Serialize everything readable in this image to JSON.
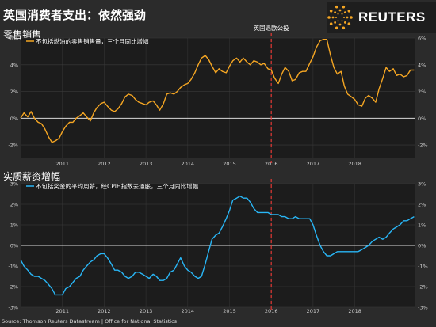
{
  "header": {
    "title": "英国消费者支出：依然强劲",
    "brand": "REUTERS",
    "source": "Source: Thomson Reuters Datastream | Office for National Statistics"
  },
  "colors": {
    "orange": "#f5a623",
    "blue": "#29b6f6",
    "marker": "#e53935"
  },
  "chart_data": [
    {
      "type": "line",
      "title": "零售销售",
      "annotation": {
        "text": "英国退欧公投",
        "x": 2016.0
      },
      "ylim": [
        -3,
        6
      ],
      "yticks": [
        -2,
        0,
        2,
        4,
        6
      ],
      "xticks": [
        "2011",
        "2012",
        "2013",
        "2014",
        "2015",
        "2016",
        "2017",
        "2018"
      ],
      "series": [
        {
          "name": "不包括燃油的零售销售量，三个月同比增幅",
          "points": [
            [
              2010.0,
              0.0
            ],
            [
              2010.08,
              0.4
            ],
            [
              2010.17,
              0.1
            ],
            [
              2010.25,
              0.5
            ],
            [
              2010.33,
              0.0
            ],
            [
              2010.42,
              -0.3
            ],
            [
              2010.5,
              -0.4
            ],
            [
              2010.58,
              -0.8
            ],
            [
              2010.67,
              -1.4
            ],
            [
              2010.75,
              -1.8
            ],
            [
              2010.83,
              -1.7
            ],
            [
              2010.92,
              -1.5
            ],
            [
              2011.0,
              -1.0
            ],
            [
              2011.08,
              -0.6
            ],
            [
              2011.17,
              -0.3
            ],
            [
              2011.25,
              -0.3
            ],
            [
              2011.33,
              0.0
            ],
            [
              2011.42,
              0.2
            ],
            [
              2011.5,
              0.4
            ],
            [
              2011.58,
              0.1
            ],
            [
              2011.67,
              -0.2
            ],
            [
              2011.75,
              0.4
            ],
            [
              2011.83,
              0.8
            ],
            [
              2011.92,
              1.1
            ],
            [
              2012.0,
              1.2
            ],
            [
              2012.08,
              0.9
            ],
            [
              2012.17,
              0.6
            ],
            [
              2012.25,
              0.5
            ],
            [
              2012.33,
              0.7
            ],
            [
              2012.42,
              1.1
            ],
            [
              2012.5,
              1.6
            ],
            [
              2012.58,
              1.8
            ],
            [
              2012.67,
              1.7
            ],
            [
              2012.75,
              1.4
            ],
            [
              2012.83,
              1.2
            ],
            [
              2012.92,
              1.1
            ],
            [
              2013.0,
              1.0
            ],
            [
              2013.08,
              1.2
            ],
            [
              2013.17,
              1.3
            ],
            [
              2013.25,
              1.0
            ],
            [
              2013.33,
              0.6
            ],
            [
              2013.42,
              1.1
            ],
            [
              2013.5,
              1.8
            ],
            [
              2013.58,
              1.9
            ],
            [
              2013.67,
              1.8
            ],
            [
              2013.75,
              2.0
            ],
            [
              2013.83,
              2.3
            ],
            [
              2013.92,
              2.5
            ],
            [
              2014.0,
              2.6
            ],
            [
              2014.08,
              2.9
            ],
            [
              2014.17,
              3.4
            ],
            [
              2014.25,
              4.0
            ],
            [
              2014.33,
              4.5
            ],
            [
              2014.42,
              4.7
            ],
            [
              2014.5,
              4.4
            ],
            [
              2014.58,
              3.9
            ],
            [
              2014.67,
              3.4
            ],
            [
              2014.75,
              3.7
            ],
            [
              2014.83,
              3.5
            ],
            [
              2014.92,
              3.4
            ],
            [
              2015.0,
              3.9
            ],
            [
              2015.08,
              4.3
            ],
            [
              2015.17,
              4.5
            ],
            [
              2015.25,
              4.2
            ],
            [
              2015.33,
              4.5
            ],
            [
              2015.42,
              4.2
            ],
            [
              2015.5,
              4.0
            ],
            [
              2015.58,
              4.3
            ],
            [
              2015.67,
              4.2
            ],
            [
              2015.75,
              4.0
            ],
            [
              2015.83,
              4.1
            ],
            [
              2015.92,
              3.7
            ],
            [
              2016.0,
              3.6
            ],
            [
              2016.08,
              3.0
            ],
            [
              2016.17,
              2.6
            ],
            [
              2016.25,
              3.3
            ],
            [
              2016.33,
              3.8
            ],
            [
              2016.42,
              3.5
            ],
            [
              2016.5,
              2.8
            ],
            [
              2016.58,
              2.9
            ],
            [
              2016.67,
              3.4
            ],
            [
              2016.75,
              3.5
            ],
            [
              2016.83,
              3.5
            ],
            [
              2016.92,
              4.1
            ],
            [
              2017.0,
              4.6
            ],
            [
              2017.08,
              5.3
            ],
            [
              2017.17,
              5.8
            ],
            [
              2017.25,
              5.9
            ],
            [
              2017.33,
              5.9
            ],
            [
              2017.42,
              4.7
            ],
            [
              2017.5,
              3.8
            ],
            [
              2017.58,
              3.3
            ],
            [
              2017.67,
              3.5
            ],
            [
              2017.75,
              2.4
            ],
            [
              2017.83,
              1.8
            ],
            [
              2017.92,
              1.6
            ],
            [
              2018.0,
              1.4
            ],
            [
              2018.08,
              1.0
            ],
            [
              2018.17,
              0.9
            ],
            [
              2018.25,
              1.5
            ],
            [
              2018.33,
              1.7
            ],
            [
              2018.42,
              1.5
            ],
            [
              2018.5,
              1.2
            ],
            [
              2018.58,
              2.2
            ],
            [
              2018.67,
              3.0
            ],
            [
              2018.75,
              3.8
            ],
            [
              2018.83,
              3.5
            ],
            [
              2018.92,
              3.7
            ],
            [
              2019.0,
              3.2
            ],
            [
              2019.08,
              3.3
            ],
            [
              2019.17,
              3.1
            ],
            [
              2019.25,
              3.2
            ],
            [
              2019.33,
              3.6
            ],
            [
              2019.42,
              3.6
            ]
          ]
        }
      ]
    },
    {
      "type": "line",
      "title": "实质薪资增幅",
      "ylim": [
        -3,
        3
      ],
      "yticks": [
        -3,
        -2,
        -1,
        0,
        1,
        2,
        3
      ],
      "xticks": [
        "2011",
        "2012",
        "2013",
        "2014",
        "2015",
        "2016",
        "2017",
        "2018"
      ],
      "series": [
        {
          "name": "不包括奖金的平均周薪，经CPIH指数去通胀，三个月同比增幅",
          "points": [
            [
              2010.0,
              -0.7
            ],
            [
              2010.08,
              -1.0
            ],
            [
              2010.17,
              -1.2
            ],
            [
              2010.25,
              -1.4
            ],
            [
              2010.33,
              -1.5
            ],
            [
              2010.42,
              -1.5
            ],
            [
              2010.5,
              -1.6
            ],
            [
              2010.58,
              -1.7
            ],
            [
              2010.67,
              -1.9
            ],
            [
              2010.75,
              -2.1
            ],
            [
              2010.83,
              -2.4
            ],
            [
              2010.92,
              -2.4
            ],
            [
              2011.0,
              -2.4
            ],
            [
              2011.08,
              -2.1
            ],
            [
              2011.17,
              -2.0
            ],
            [
              2011.25,
              -1.8
            ],
            [
              2011.33,
              -1.6
            ],
            [
              2011.42,
              -1.5
            ],
            [
              2011.5,
              -1.2
            ],
            [
              2011.58,
              -1.0
            ],
            [
              2011.67,
              -0.8
            ],
            [
              2011.75,
              -0.7
            ],
            [
              2011.83,
              -0.5
            ],
            [
              2011.92,
              -0.4
            ],
            [
              2012.0,
              -0.4
            ],
            [
              2012.08,
              -0.6
            ],
            [
              2012.17,
              -0.9
            ],
            [
              2012.25,
              -1.2
            ],
            [
              2012.33,
              -1.2
            ],
            [
              2012.42,
              -1.3
            ],
            [
              2012.5,
              -1.5
            ],
            [
              2012.58,
              -1.6
            ],
            [
              2012.67,
              -1.5
            ],
            [
              2012.75,
              -1.3
            ],
            [
              2012.83,
              -1.3
            ],
            [
              2012.92,
              -1.4
            ],
            [
              2013.0,
              -1.5
            ],
            [
              2013.08,
              -1.6
            ],
            [
              2013.17,
              -1.4
            ],
            [
              2013.25,
              -1.5
            ],
            [
              2013.33,
              -1.7
            ],
            [
              2013.42,
              -1.7
            ],
            [
              2013.5,
              -1.6
            ],
            [
              2013.58,
              -1.3
            ],
            [
              2013.67,
              -1.2
            ],
            [
              2013.75,
              -0.9
            ],
            [
              2013.83,
              -0.6
            ],
            [
              2013.92,
              -1.0
            ],
            [
              2014.0,
              -1.2
            ],
            [
              2014.08,
              -1.3
            ],
            [
              2014.17,
              -1.5
            ],
            [
              2014.25,
              -1.6
            ],
            [
              2014.33,
              -1.5
            ],
            [
              2014.42,
              -0.9
            ],
            [
              2014.5,
              -0.3
            ],
            [
              2014.58,
              0.3
            ],
            [
              2014.67,
              0.5
            ],
            [
              2014.75,
              0.6
            ],
            [
              2014.83,
              0.9
            ],
            [
              2014.92,
              1.3
            ],
            [
              2015.0,
              1.7
            ],
            [
              2015.08,
              2.2
            ],
            [
              2015.17,
              2.3
            ],
            [
              2015.25,
              2.4
            ],
            [
              2015.33,
              2.3
            ],
            [
              2015.42,
              2.3
            ],
            [
              2015.5,
              2.1
            ],
            [
              2015.58,
              1.8
            ],
            [
              2015.67,
              1.6
            ],
            [
              2015.75,
              1.6
            ],
            [
              2015.83,
              1.6
            ],
            [
              2015.92,
              1.6
            ],
            [
              2016.0,
              1.5
            ],
            [
              2016.08,
              1.5
            ],
            [
              2016.17,
              1.5
            ],
            [
              2016.25,
              1.4
            ],
            [
              2016.33,
              1.4
            ],
            [
              2016.42,
              1.3
            ],
            [
              2016.5,
              1.3
            ],
            [
              2016.58,
              1.4
            ],
            [
              2016.67,
              1.3
            ],
            [
              2016.75,
              1.3
            ],
            [
              2016.83,
              1.3
            ],
            [
              2016.92,
              1.3
            ],
            [
              2017.0,
              1.0
            ],
            [
              2017.08,
              0.5
            ],
            [
              2017.17,
              0.0
            ],
            [
              2017.25,
              -0.3
            ],
            [
              2017.33,
              -0.5
            ],
            [
              2017.42,
              -0.5
            ],
            [
              2017.5,
              -0.4
            ],
            [
              2017.58,
              -0.3
            ],
            [
              2017.67,
              -0.3
            ],
            [
              2017.75,
              -0.3
            ],
            [
              2017.83,
              -0.3
            ],
            [
              2017.92,
              -0.3
            ],
            [
              2018.0,
              -0.3
            ],
            [
              2018.08,
              -0.3
            ],
            [
              2018.17,
              -0.2
            ],
            [
              2018.25,
              -0.1
            ],
            [
              2018.33,
              0.0
            ],
            [
              2018.42,
              0.2
            ],
            [
              2018.5,
              0.3
            ],
            [
              2018.58,
              0.4
            ],
            [
              2018.67,
              0.3
            ],
            [
              2018.75,
              0.4
            ],
            [
              2018.83,
              0.6
            ],
            [
              2018.92,
              0.8
            ],
            [
              2019.0,
              0.9
            ],
            [
              2019.08,
              1.0
            ],
            [
              2019.17,
              1.2
            ],
            [
              2019.25,
              1.2
            ],
            [
              2019.33,
              1.3
            ],
            [
              2019.42,
              1.4
            ]
          ]
        }
      ]
    }
  ]
}
